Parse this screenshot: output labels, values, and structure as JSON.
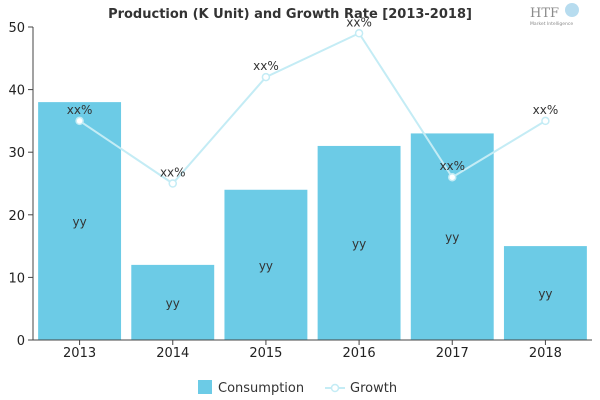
{
  "logo": {
    "text": "HTF",
    "tagline": "Market Intelligence"
  },
  "chart_data": {
    "type": "bar",
    "title": "Production (K Unit) and Growth Rate [2013-2018]",
    "categories": [
      "2013",
      "2014",
      "2015",
      "2016",
      "2017",
      "2018"
    ],
    "ylim": [
      0,
      50
    ],
    "yticks": [
      0,
      10,
      20,
      30,
      40,
      50
    ],
    "grid": false,
    "legend_position": "bottom",
    "series": [
      {
        "name": "Consumption",
        "type": "bar",
        "color": "#6ccbe6",
        "values": [
          38,
          12,
          24,
          31,
          33,
          15
        ],
        "labels": [
          "yy",
          "yy",
          "yy",
          "yy",
          "yy",
          "yy"
        ]
      },
      {
        "name": "Growth",
        "type": "line",
        "color": "#c4ecf5",
        "values": [
          35,
          25,
          42,
          49,
          26,
          35
        ],
        "labels": [
          "xx%",
          "xx%",
          "xx%",
          "xx%",
          "xx%",
          "xx%"
        ]
      }
    ]
  }
}
